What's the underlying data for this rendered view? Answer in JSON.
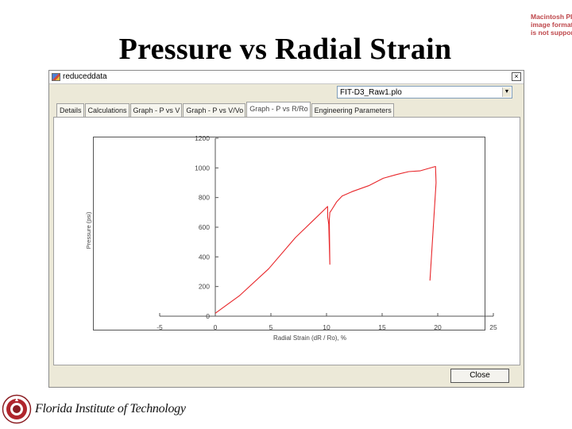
{
  "slide": {
    "title": "Pressure vs Radial Strain",
    "corner_note": [
      "Macintosh PICT",
      "image format",
      "is not supported"
    ],
    "footer_text": "Florida Institute of Technology"
  },
  "window": {
    "title": "reduceddata",
    "close_glyph": "×",
    "dropdown_value": "FIT-D3_Raw1.plo",
    "dropdown_arrow": "▼",
    "tabs": [
      {
        "label": "Details"
      },
      {
        "label": "Calculations"
      },
      {
        "label": "Graph - P vs V"
      },
      {
        "label": "Graph - P vs V/Vo"
      },
      {
        "label": "Graph - P vs R/Ro"
      },
      {
        "label": "Engineering Parameters"
      }
    ],
    "active_tab": 4,
    "close_button_label": "Close"
  },
  "colors": {
    "series": "#e8262a",
    "window_bg": "#ece9d8",
    "axis": "#555555"
  },
  "chart_data": {
    "type": "line",
    "ylabel": "Pressure (psi)",
    "xlabel": "Radial Strain (dR / Ro), %",
    "xlim": [
      -5,
      25
    ],
    "ylim": [
      0,
      1200
    ],
    "x_ticks": [
      "-5",
      "0",
      "5",
      "10",
      "15",
      "20",
      "25"
    ],
    "y_ticks": [
      "0",
      "200",
      "400",
      "600",
      "800",
      "1000",
      "1200"
    ],
    "series": [
      {
        "x": [
          0,
          2.2,
          4.8,
          7.2,
          9.0,
          10.1,
          10.1,
          10.2,
          10.3,
          10.25,
          10.3,
          10.4,
          10.9,
          11.4,
          12.3,
          13.8,
          15.1,
          16.3,
          17.4,
          18.4,
          19.8,
          19.85,
          19.6,
          19.3
        ],
        "y": [
          20,
          140,
          320,
          530,
          660,
          740,
          670,
          620,
          350,
          650,
          700,
          710,
          770,
          810,
          840,
          880,
          930,
          955,
          975,
          980,
          1010,
          900,
          600,
          240
        ]
      }
    ]
  }
}
